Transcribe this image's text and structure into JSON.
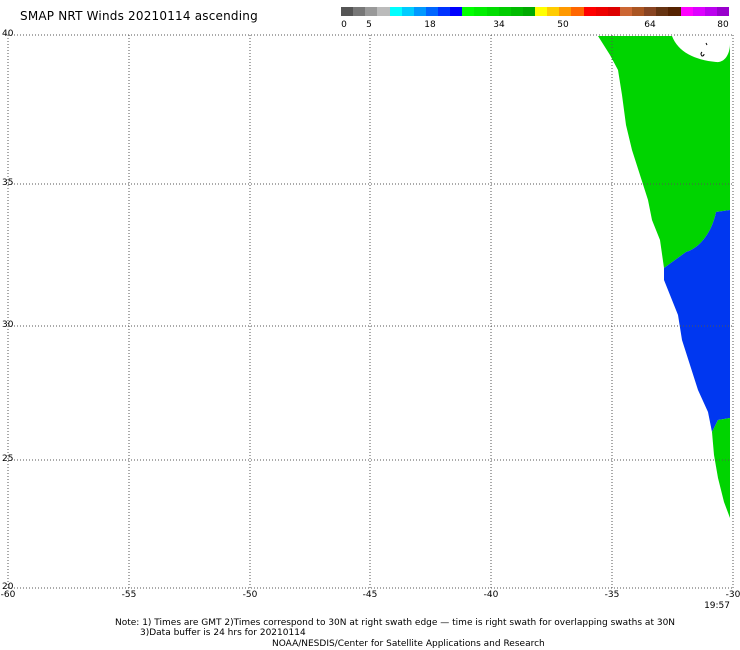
{
  "title": "SMAP NRT Winds 20210114 ascending",
  "colorscale": {
    "labels": [
      "0",
      "5",
      "18",
      "34",
      "50",
      "64",
      "80"
    ],
    "segments": [
      "#555555",
      "#777777",
      "#999999",
      "#bbbbbb",
      "#00ffff",
      "#00ccff",
      "#0099ff",
      "#0066ff",
      "#0033ff",
      "#0000ff",
      "#00ff00",
      "#00ee00",
      "#00dd00",
      "#00cc00",
      "#00bb00",
      "#00aa00",
      "#ffff00",
      "#ffcc00",
      "#ff9900",
      "#ff6600",
      "#ff0000",
      "#ee0000",
      "#dd0000",
      "#cc6633",
      "#aa5522",
      "#884422",
      "#663311",
      "#552200",
      "#ff00ff",
      "#dd00ff",
      "#bb00ee",
      "#9900cc"
    ]
  },
  "axes": {
    "lat_labels": [
      "40",
      "35",
      "30",
      "25",
      "20"
    ],
    "lon_labels": [
      "-60",
      "-55",
      "-50",
      "-45",
      "-40",
      "-35",
      "-30"
    ]
  },
  "colors": {
    "green": "#00d400",
    "blue": "#0037f0",
    "grid": "#555555"
  },
  "time_label": "19:57",
  "notes": {
    "line1": "Note: 1) Times are GMT 2)Times correspond to 30N at right swath edge — time is right swath for overlapping swaths at 30N",
    "line2": "3)Data buffer is 24 hrs for 20210114",
    "line3": "NOAA/NESDIS/Center for Satellite Applications and Research"
  }
}
